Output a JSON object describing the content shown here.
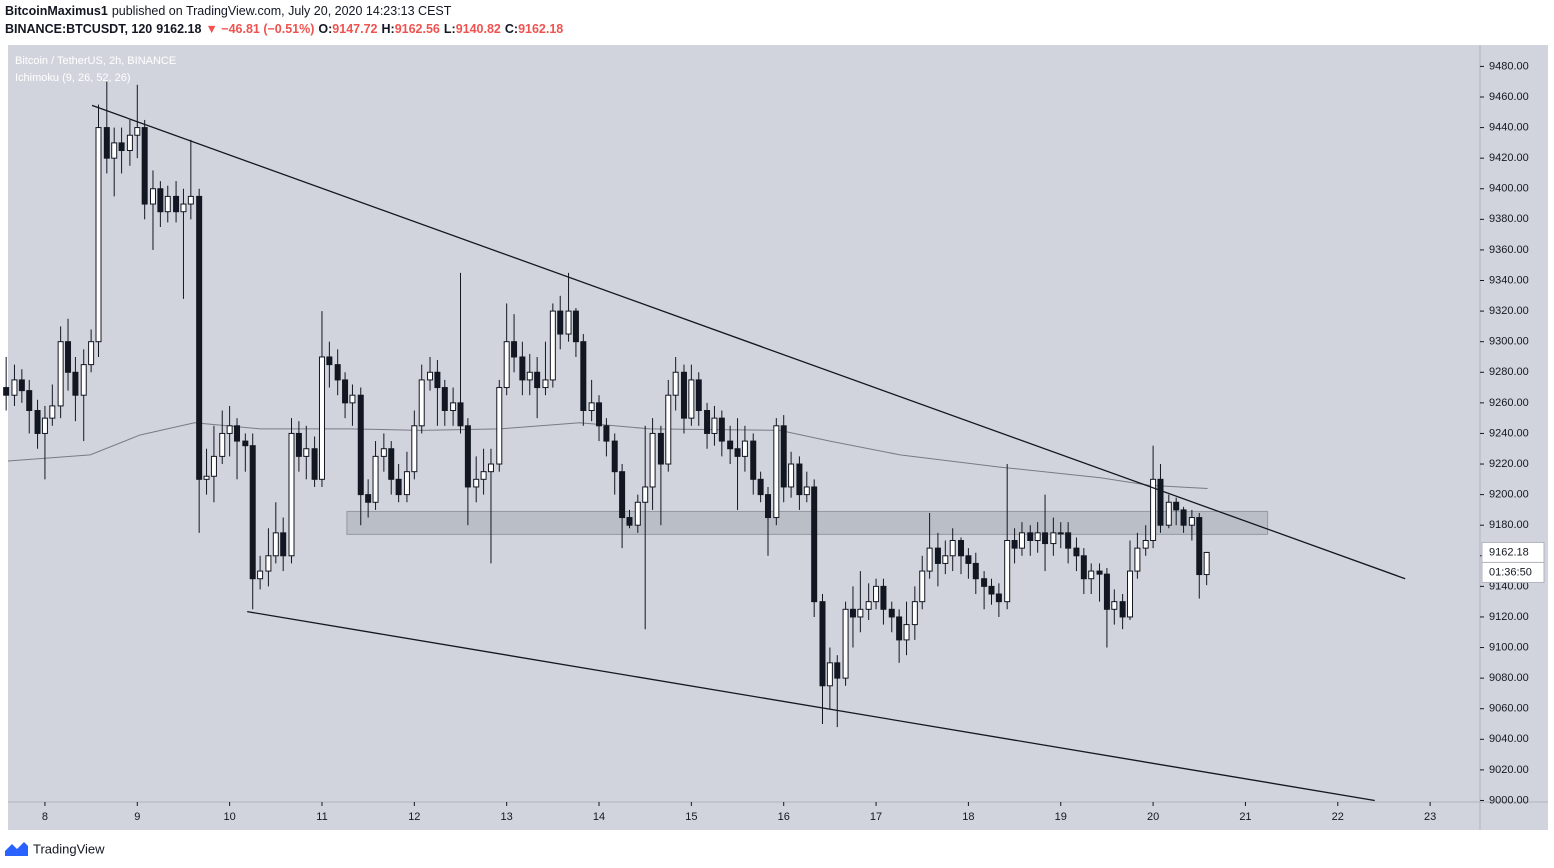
{
  "header": {
    "author": "BitcoinMaximus1",
    "published": "published on TradingView.com, July 20, 2020 14:23:13 CEST",
    "symbol": "BINANCE:BTCUSDT, 120",
    "last": "9162.18",
    "change": "▼ −46.81 (−0.51%)",
    "o_label": "O:",
    "o": "9147.72",
    "h_label": "H:",
    "h": "9162.56",
    "l_label": "L:",
    "l": "9140.82",
    "c_label": "C:",
    "c": "9162.18"
  },
  "chart_data": {
    "type": "candlestick",
    "title": "Bitcoin / TetherUS, 2h, BINANCE",
    "up_color": "#ffffff",
    "down_color": "#131722",
    "xlim": [
      7.6,
      23.54
    ],
    "xticks": [
      8,
      9,
      10,
      11,
      12,
      13,
      14,
      15,
      16,
      17,
      18,
      19,
      20,
      21,
      22,
      23
    ],
    "ylim": [
      8999,
      9494
    ],
    "yticks": [
      {
        "value": 9000,
        "label": "9000.00"
      },
      {
        "value": 9020,
        "label": "9020.00"
      },
      {
        "value": 9040,
        "label": "9040.00"
      },
      {
        "value": 9060,
        "label": "9060.00"
      },
      {
        "value": 9080,
        "label": "9080.00"
      },
      {
        "value": 9100,
        "label": "9100.00"
      },
      {
        "value": 9120,
        "label": "9120.00"
      },
      {
        "value": 9140,
        "label": "9140.00"
      },
      {
        "value": 9160,
        "label": "9160.00"
      },
      {
        "value": 9180,
        "label": "9180.00"
      },
      {
        "value": 9200,
        "label": "9200.00"
      },
      {
        "value": 9220,
        "label": "9220.00"
      },
      {
        "value": 9240,
        "label": "9240.00"
      },
      {
        "value": 9260,
        "label": "9260.00"
      },
      {
        "value": 9280,
        "label": "9280.00"
      },
      {
        "value": 9300,
        "label": "9300.00"
      },
      {
        "value": 9320,
        "label": "9320.00"
      },
      {
        "value": 9340,
        "label": "9340.00"
      },
      {
        "value": 9360,
        "label": "9360.00"
      },
      {
        "value": 9380,
        "label": "9380.00"
      },
      {
        "value": 9400,
        "label": "9400.00"
      },
      {
        "value": 9420,
        "label": "9420.00"
      },
      {
        "value": 9440,
        "label": "9440.00"
      },
      {
        "value": 9460,
        "label": "9460.00"
      },
      {
        "value": 9480,
        "label": "9480.00"
      }
    ],
    "grid": false,
    "x": [
      7.58,
      7.67,
      7.75,
      7.83,
      7.92,
      8,
      8.08,
      8.17,
      8.25,
      8.33,
      8.42,
      8.5,
      8.58,
      8.67,
      8.75,
      8.83,
      8.92,
      9,
      9.08,
      9.17,
      9.25,
      9.33,
      9.42,
      9.5,
      9.58,
      9.67,
      9.75,
      9.83,
      9.92,
      10,
      10.08,
      10.17,
      10.25,
      10.33,
      10.42,
      10.5,
      10.58,
      10.67,
      10.75,
      10.83,
      10.92,
      11,
      11.08,
      11.17,
      11.25,
      11.33,
      11.42,
      11.5,
      11.58,
      11.67,
      11.75,
      11.83,
      11.92,
      12,
      12.08,
      12.17,
      12.25,
      12.33,
      12.42,
      12.5,
      12.58,
      12.67,
      12.75,
      12.83,
      12.92,
      13,
      13.08,
      13.17,
      13.25,
      13.33,
      13.42,
      13.5,
      13.58,
      13.67,
      13.75,
      13.83,
      13.92,
      14,
      14.08,
      14.17,
      14.25,
      14.33,
      14.42,
      14.5,
      14.58,
      14.67,
      14.75,
      14.83,
      14.92,
      15,
      15.08,
      15.17,
      15.25,
      15.33,
      15.42,
      15.5,
      15.58,
      15.67,
      15.75,
      15.83,
      15.92,
      16,
      16.08,
      16.17,
      16.25,
      16.33,
      16.42,
      16.5,
      16.58,
      16.67,
      16.75,
      16.83,
      16.92,
      17,
      17.08,
      17.17,
      17.25,
      17.33,
      17.42,
      17.5,
      17.58,
      17.67,
      17.75,
      17.83,
      17.92,
      18,
      18.08,
      18.17,
      18.25,
      18.33,
      18.42,
      18.5,
      18.58,
      18.67,
      18.75,
      18.83,
      18.92,
      19,
      19.08,
      19.17,
      19.25,
      19.33,
      19.42,
      19.5,
      19.58,
      19.67,
      19.75,
      19.83,
      19.92,
      20,
      20.08,
      20.17,
      20.25,
      20.33,
      20.42,
      20.5,
      20.58
    ],
    "open": [
      9270,
      9265,
      9275,
      9268,
      9255,
      9240,
      9250,
      9258,
      9300,
      9280,
      9265,
      9285,
      9300,
      9440,
      9420,
      9430,
      9425,
      9435,
      9440,
      9390,
      9400,
      9385,
      9395,
      9385,
      9390,
      9395,
      9210,
      9212,
      9225,
      9240,
      9245,
      9235,
      9232,
      9145,
      9150,
      9160,
      9175,
      9160,
      9240,
      9225,
      9230,
      9210,
      9290,
      9285,
      9275,
      9260,
      9265,
      9200,
      9195,
      9225,
      9230,
      9210,
      9200,
      9215,
      9245,
      9275,
      9280,
      9270,
      9255,
      9260,
      9245,
      9205,
      9210,
      9215,
      9220,
      9270,
      9300,
      9290,
      9275,
      9280,
      9270,
      9275,
      9320,
      9305,
      9320,
      9300,
      9255,
      9260,
      9245,
      9235,
      9215,
      9185,
      9180,
      9195,
      9205,
      9240,
      9220,
      9265,
      9280,
      9250,
      9275,
      9255,
      9240,
      9250,
      9235,
      9230,
      9225,
      9235,
      9210,
      9200,
      9185,
      9245,
      9205,
      9220,
      9200,
      9205,
      9130,
      9075,
      9090,
      9080,
      9125,
      9120,
      9125,
      9130,
      9140,
      9125,
      9120,
      9105,
      9115,
      9130,
      9150,
      9165,
      9155,
      9160,
      9170,
      9160,
      9155,
      9145,
      9140,
      9135,
      9130,
      9170,
      9165,
      9175,
      9170,
      9175,
      9168,
      9175,
      9175,
      9165,
      9160,
      9145,
      9150,
      9148,
      9125,
      9130,
      9120,
      9150,
      9165,
      9170,
      9210,
      9180,
      9195,
      9190,
      9180,
      9185,
      9147.72
    ],
    "high": [
      9290,
      9285,
      9282,
      9275,
      9262,
      9258,
      9272,
      9310,
      9315,
      9290,
      9295,
      9308,
      9455,
      9470,
      9440,
      9440,
      9445,
      9468,
      9445,
      9412,
      9405,
      9402,
      9405,
      9400,
      9432,
      9400,
      9230,
      9245,
      9255,
      9258,
      9250,
      9240,
      9240,
      9160,
      9178,
      9195,
      9185,
      9250,
      9248,
      9245,
      9238,
      9320,
      9300,
      9295,
      9280,
      9272,
      9270,
      9210,
      9235,
      9240,
      9235,
      9220,
      9228,
      9255,
      9285,
      9290,
      9288,
      9275,
      9270,
      9345,
      9250,
      9225,
      9230,
      9230,
      9275,
      9325,
      9318,
      9300,
      9292,
      9290,
      9300,
      9325,
      9330,
      9345,
      9322,
      9305,
      9275,
      9265,
      9250,
      9240,
      9220,
      9190,
      9200,
      9245,
      9250,
      9245,
      9275,
      9290,
      9285,
      9285,
      9280,
      9260,
      9258,
      9255,
      9245,
      9250,
      9245,
      9240,
      9215,
      9205,
      9250,
      9252,
      9228,
      9225,
      9215,
      9210,
      9135,
      9100,
      9095,
      9130,
      9140,
      9150,
      9142,
      9145,
      9145,
      9130,
      9125,
      9130,
      9140,
      9160,
      9188,
      9175,
      9170,
      9178,
      9172,
      9165,
      9162,
      9150,
      9145,
      9142,
      9220,
      9178,
      9182,
      9180,
      9182,
      9200,
      9185,
      9182,
      9182,
      9172,
      9165,
      9155,
      9155,
      9152,
      9138,
      9135,
      9170,
      9175,
      9180,
      9232,
      9220,
      9200,
      9198,
      9192,
      9190,
      9188,
      9162.56
    ],
    "low": [
      9255,
      9258,
      9260,
      9240,
      9230,
      9210,
      9245,
      9250,
      9268,
      9248,
      9235,
      9280,
      9290,
      9410,
      9395,
      9410,
      9415,
      9420,
      9380,
      9360,
      9375,
      9378,
      9378,
      9328,
      9380,
      9175,
      9200,
      9195,
      9220,
      9225,
      9210,
      9215,
      9125,
      9138,
      9140,
      9155,
      9150,
      9155,
      9215,
      9210,
      9205,
      9205,
      9270,
      9265,
      9250,
      9245,
      9180,
      9185,
      9190,
      9215,
      9200,
      9195,
      9195,
      9210,
      9240,
      9268,
      9245,
      9245,
      9245,
      9240,
      9180,
      9195,
      9200,
      9155,
      9215,
      9265,
      9280,
      9265,
      9265,
      9250,
      9265,
      9270,
      9295,
      9300,
      9290,
      9245,
      9248,
      9235,
      9225,
      9200,
      9165,
      9178,
      9175,
      9112,
      9190,
      9180,
      9215,
      9255,
      9240,
      9245,
      9245,
      9230,
      9232,
      9225,
      9220,
      9190,
      9215,
      9200,
      9195,
      9160,
      9180,
      9195,
      9198,
      9190,
      9195,
      9120,
      9050,
      9060,
      9048,
      9075,
      9100,
      9110,
      9118,
      9125,
      9115,
      9110,
      9090,
      9095,
      9105,
      9125,
      9145,
      9140,
      9148,
      9150,
      9148,
      9145,
      9135,
      9125,
      9128,
      9120,
      9125,
      9155,
      9160,
      9160,
      9162,
      9150,
      9160,
      9165,
      9155,
      9150,
      9135,
      9135,
      9130,
      9100,
      9115,
      9112,
      9118,
      9145,
      9160,
      9165,
      9175,
      9178,
      9180,
      9175,
      9170,
      9132,
      9140.82
    ],
    "close": [
      9265,
      9275,
      9268,
      9255,
      9240,
      9250,
      9258,
      9300,
      9280,
      9265,
      9285,
      9300,
      9440,
      9420,
      9430,
      9425,
      9435,
      9440,
      9390,
      9400,
      9385,
      9395,
      9385,
      9390,
      9395,
      9210,
      9212,
      9225,
      9240,
      9245,
      9235,
      9232,
      9145,
      9150,
      9160,
      9175,
      9160,
      9240,
      9225,
      9230,
      9210,
      9290,
      9285,
      9275,
      9260,
      9265,
      9200,
      9195,
      9225,
      9230,
      9210,
      9200,
      9215,
      9245,
      9275,
      9280,
      9270,
      9255,
      9260,
      9245,
      9205,
      9210,
      9215,
      9220,
      9270,
      9300,
      9290,
      9275,
      9280,
      9270,
      9275,
      9320,
      9305,
      9320,
      9300,
      9255,
      9260,
      9245,
      9235,
      9215,
      9185,
      9180,
      9195,
      9205,
      9240,
      9220,
      9265,
      9280,
      9250,
      9275,
      9255,
      9240,
      9250,
      9235,
      9230,
      9225,
      9235,
      9210,
      9200,
      9185,
      9245,
      9205,
      9220,
      9200,
      9205,
      9130,
      9075,
      9090,
      9080,
      9125,
      9120,
      9125,
      9130,
      9140,
      9125,
      9120,
      9105,
      9115,
      9130,
      9150,
      9165,
      9155,
      9160,
      9170,
      9160,
      9155,
      9145,
      9140,
      9135,
      9130,
      9170,
      9165,
      9175,
      9170,
      9175,
      9168,
      9175,
      9175,
      9165,
      9160,
      9145,
      9150,
      9148,
      9125,
      9130,
      9120,
      9150,
      9165,
      9170,
      9210,
      9180,
      9195,
      9190,
      9180,
      9185,
      9147.72,
      9162.18
    ],
    "overlay": {
      "name": "Ichimoku (9, 26, 52, 26)",
      "color": "#787b86",
      "x": [
        7.6,
        8.49,
        9.03,
        9.62,
        10.33,
        11.3,
        12.06,
        12.93,
        13.79,
        14.55,
        15.96,
        16.5,
        17.26,
        18.34,
        19.43,
        19.97,
        20.59
      ],
      "values": [
        9222,
        9226,
        9239,
        9247,
        9243,
        9243,
        9242,
        9243,
        9247,
        9243,
        9242,
        9235,
        9226,
        9218,
        9211,
        9206,
        9204
      ]
    },
    "trendlines": [
      {
        "x": [
          8.51,
          22.73
        ],
        "y": [
          9454.5,
          9145
        ]
      },
      {
        "x": [
          10.19,
          22.4
        ],
        "y": [
          9123.5,
          9000
        ]
      }
    ],
    "zone": {
      "x": [
        11.27,
        21.24
      ],
      "y": [
        9174,
        9189
      ]
    },
    "price_label": {
      "value": 9162.18,
      "label": "9162.18"
    },
    "countdown": "01:36:50"
  },
  "footer": {
    "brand": "TradingView"
  }
}
